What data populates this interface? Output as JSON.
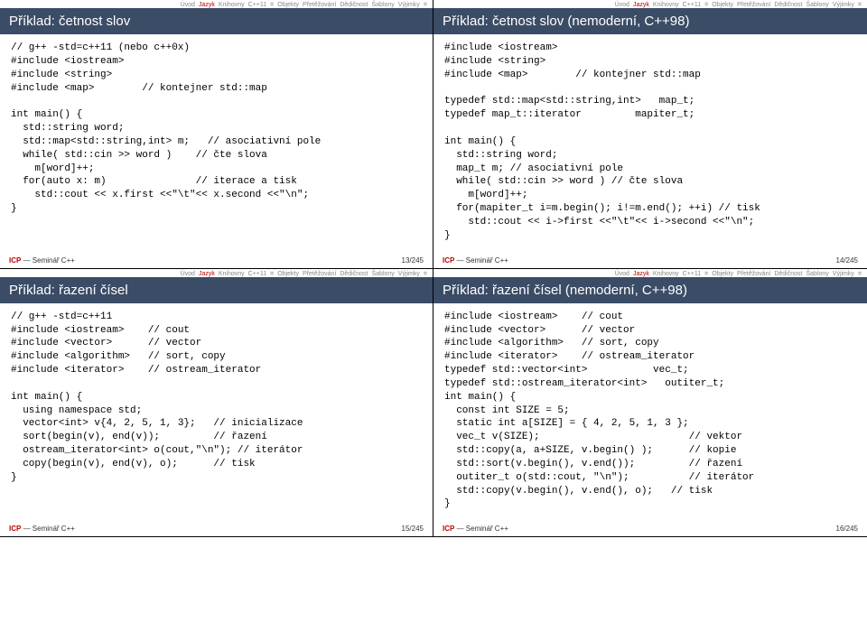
{
  "nav": {
    "items": [
      "Úvod",
      "Jazyk",
      "Knihovny",
      "C++11",
      "=",
      "Objekty",
      "Přetěžování",
      "Dědičnost",
      "Šablony",
      "Výjimky",
      "="
    ],
    "activeIndex": 1
  },
  "footer": {
    "seminarLabel": "Seminář C++",
    "prefix": "ICP"
  },
  "slides": [
    {
      "title": "Příklad: četnost slov",
      "page": "13/245",
      "code": "// g++ -std=c++11 (nebo c++0x)\n#include <iostream>\n#include <string>\n#include <map>        // kontejner std::map\n\nint main() {\n  std::string word;\n  std::map<std::string,int> m;   // asociativní pole\n  while( std::cin >> word )    // čte slova\n    m[word]++;\n  for(auto x: m)               // iterace a tisk\n    std::cout << x.first <<\"\\t\"<< x.second <<\"\\n\";\n}"
    },
    {
      "title": "Příklad: četnost slov (nemoderní, C++98)",
      "page": "14/245",
      "code": "#include <iostream>\n#include <string>\n#include <map>        // kontejner std::map\n\ntypedef std::map<std::string,int>   map_t;\ntypedef map_t::iterator         mapiter_t;\n\nint main() {\n  std::string word;\n  map_t m; // asociativní pole\n  while( std::cin >> word ) // čte slova\n    m[word]++;\n  for(mapiter_t i=m.begin(); i!=m.end(); ++i) // tisk\n    std::cout << i->first <<\"\\t\"<< i->second <<\"\\n\";\n}"
    },
    {
      "title": "Příklad: řazení čísel",
      "page": "15/245",
      "code": "// g++ -std=c++11\n#include <iostream>    // cout\n#include <vector>      // vector\n#include <algorithm>   // sort, copy\n#include <iterator>    // ostream_iterator\n\nint main() {\n  using namespace std;\n  vector<int> v{4, 2, 5, 1, 3};   // inicializace\n  sort(begin(v), end(v));         // řazení\n  ostream_iterator<int> o(cout,\"\\n\"); // iterátor\n  copy(begin(v), end(v), o);      // tisk\n}"
    },
    {
      "title": "Příklad: řazení čísel (nemoderní, C++98)",
      "page": "16/245",
      "code": "#include <iostream>    // cout\n#include <vector>      // vector\n#include <algorithm>   // sort, copy\n#include <iterator>    // ostream_iterator\ntypedef std::vector<int>           vec_t;\ntypedef std::ostream_iterator<int>   outiter_t;\nint main() {\n  const int SIZE = 5;\n  static int a[SIZE] = { 4, 2, 5, 1, 3 };\n  vec_t v(SIZE);                         // vektor\n  std::copy(a, a+SIZE, v.begin() );      // kopie\n  std::sort(v.begin(), v.end());         // řazení\n  outiter_t o(std::cout, \"\\n\");          // iterátor\n  std::copy(v.begin(), v.end(), o);   // tisk\n}"
    }
  ]
}
